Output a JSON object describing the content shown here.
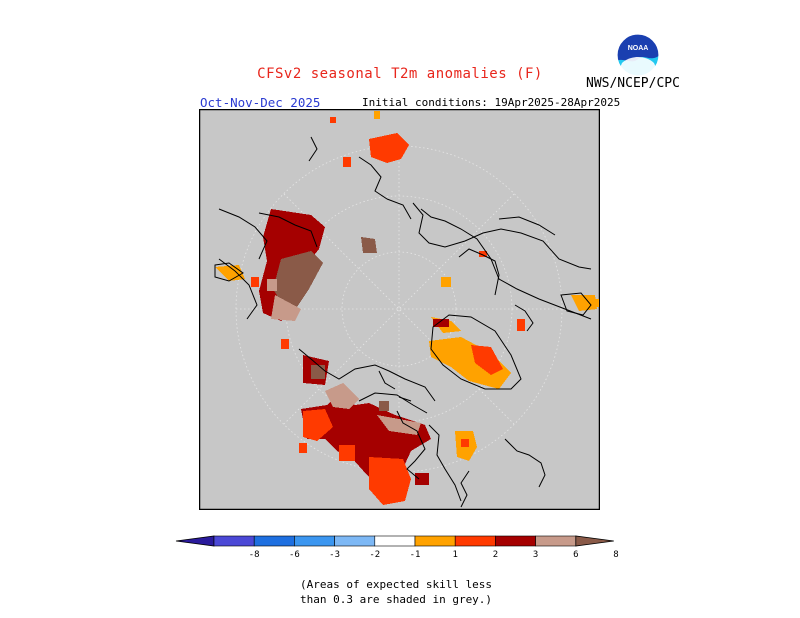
{
  "header": {
    "title": "CFSv2 seasonal T2m anomalies (F)",
    "agency": "NWS/NCEP/CPC",
    "period": "Oct-Nov-Dec 2025",
    "initial_conditions": "Initial conditions: 19Apr2025-28Apr2025"
  },
  "logo": {
    "text": "NOAA",
    "colors": {
      "top": "#1a3fb0",
      "bottom": "#22c8f0"
    }
  },
  "legend": {
    "units": "F",
    "tick_labels": [
      "-8",
      "-6",
      "-3",
      "-2",
      "-1",
      "1",
      "2",
      "3",
      "6",
      "8"
    ],
    "bins": [
      {
        "range": "< -8",
        "color": "#2a1a9c"
      },
      {
        "range": "-8 to -6",
        "color": "#4b48d6"
      },
      {
        "range": "-6 to -3",
        "color": "#1e6fe0"
      },
      {
        "range": "-3 to -2",
        "color": "#3b96f0"
      },
      {
        "range": "-2 to -1",
        "color": "#7db8f5"
      },
      {
        "range": "-1 to 1",
        "color": "#ffffff"
      },
      {
        "range": "1 to 2",
        "color": "#ffa200"
      },
      {
        "range": "2 to 3",
        "color": "#ff3a00"
      },
      {
        "range": "3 to 6",
        "color": "#a50000"
      },
      {
        "range": "6 to 8",
        "color": "#c79a8a"
      },
      {
        "range": "> 8",
        "color": "#8a5a48"
      }
    ]
  },
  "map": {
    "projection": "north-polar-stereographic",
    "low_skill_color": "#c7c7c7",
    "gridline_color": "#eeeeee"
  },
  "note": {
    "line1": "(Areas of expected skill less",
    "line2": "than 0.3 are shaded in grey.)"
  }
}
